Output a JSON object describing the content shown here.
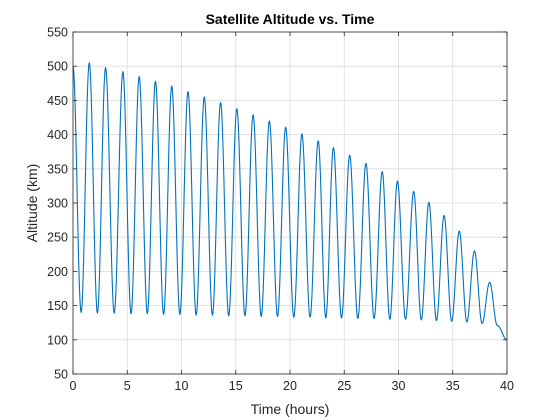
{
  "chart_data": {
    "type": "line",
    "title": "Satellite Altitude vs. Time",
    "xlabel": "Time (hours)",
    "ylabel": "Altitude (km)",
    "xlim": [
      0,
      40
    ],
    "ylim": [
      50,
      550
    ],
    "xticks": [
      0,
      5,
      10,
      15,
      20,
      25,
      30,
      35,
      40
    ],
    "yticks": [
      50,
      100,
      150,
      200,
      250,
      300,
      350,
      400,
      450,
      500,
      550
    ],
    "grid": true,
    "legend": "none",
    "colors": {
      "line": "#0072BD"
    },
    "series": [
      {
        "peaks": [
          {
            "t": 1.5,
            "alt": 505
          },
          {
            "t": 3.0,
            "alt": 498
          },
          {
            "t": 4.6,
            "alt": 492
          },
          {
            "t": 6.1,
            "alt": 485
          },
          {
            "t": 7.6,
            "alt": 478
          },
          {
            "t": 9.1,
            "alt": 471
          },
          {
            "t": 10.6,
            "alt": 463
          },
          {
            "t": 12.1,
            "alt": 455
          },
          {
            "t": 13.6,
            "alt": 447
          },
          {
            "t": 15.1,
            "alt": 438
          },
          {
            "t": 16.6,
            "alt": 429
          },
          {
            "t": 18.1,
            "alt": 420
          },
          {
            "t": 19.6,
            "alt": 411
          },
          {
            "t": 21.1,
            "alt": 401
          },
          {
            "t": 22.6,
            "alt": 391
          },
          {
            "t": 24.0,
            "alt": 381
          },
          {
            "t": 25.5,
            "alt": 370
          },
          {
            "t": 27.0,
            "alt": 358
          },
          {
            "t": 28.5,
            "alt": 346
          },
          {
            "t": 29.9,
            "alt": 332
          },
          {
            "t": 31.4,
            "alt": 317
          },
          {
            "t": 32.8,
            "alt": 301
          },
          {
            "t": 34.2,
            "alt": 282
          },
          {
            "t": 35.6,
            "alt": 259
          },
          {
            "t": 37.0,
            "alt": 230
          },
          {
            "t": 38.4,
            "alt": 184
          }
        ],
        "troughs": [
          {
            "t": 0.75,
            "alt": 140
          },
          {
            "t": 2.25,
            "alt": 139
          },
          {
            "t": 3.8,
            "alt": 139
          },
          {
            "t": 5.35,
            "alt": 138
          },
          {
            "t": 6.85,
            "alt": 138
          },
          {
            "t": 8.35,
            "alt": 137
          },
          {
            "t": 9.85,
            "alt": 137
          },
          {
            "t": 11.35,
            "alt": 136
          },
          {
            "t": 12.85,
            "alt": 136
          },
          {
            "t": 14.35,
            "alt": 135
          },
          {
            "t": 15.85,
            "alt": 135
          },
          {
            "t": 17.35,
            "alt": 134
          },
          {
            "t": 18.85,
            "alt": 134
          },
          {
            "t": 20.35,
            "alt": 133
          },
          {
            "t": 21.85,
            "alt": 133
          },
          {
            "t": 23.3,
            "alt": 132
          },
          {
            "t": 24.75,
            "alt": 132
          },
          {
            "t": 26.25,
            "alt": 131
          },
          {
            "t": 27.75,
            "alt": 131
          },
          {
            "t": 29.2,
            "alt": 130
          },
          {
            "t": 30.65,
            "alt": 130
          },
          {
            "t": 32.1,
            "alt": 129
          },
          {
            "t": 33.5,
            "alt": 128
          },
          {
            "t": 34.9,
            "alt": 127
          },
          {
            "t": 36.3,
            "alt": 126
          },
          {
            "t": 37.7,
            "alt": 124
          },
          {
            "t": 39.1,
            "alt": 121
          }
        ],
        "start": {
          "t": 0,
          "alt": 500
        },
        "end": {
          "t": 40,
          "alt": 100
        }
      }
    ]
  }
}
